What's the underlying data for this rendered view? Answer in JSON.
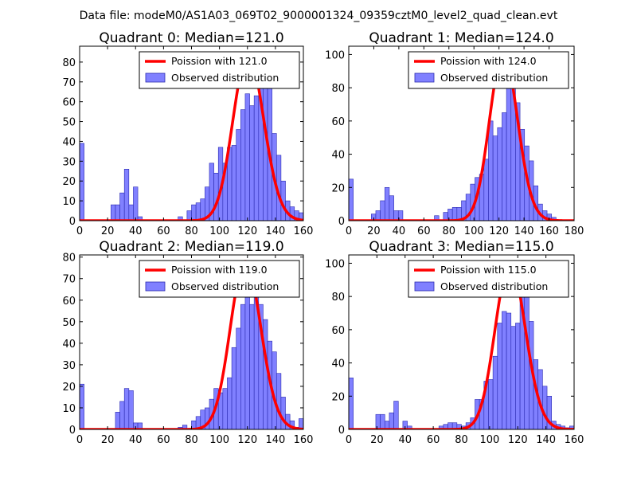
{
  "figure_title": "Data file: modeM0/AS1A03_069T02_9000001324_09359cztM0_level2_quad_clean.evt",
  "colors": {
    "bar_fill": "#8080ff",
    "bar_edge": "#2a2ab0",
    "poisson_line": "#ff0000",
    "axes": "#000000"
  },
  "chart_data": [
    {
      "type": "bar",
      "title": "Quadrant 0: Median=121.0",
      "median": 121.0,
      "xlim": [
        0,
        160
      ],
      "ylim": [
        0,
        88
      ],
      "xticks": [
        0,
        20,
        40,
        60,
        80,
        100,
        120,
        140,
        160
      ],
      "yticks": [
        0,
        10,
        20,
        30,
        40,
        50,
        60,
        70,
        80
      ],
      "bin_width": 3.2,
      "bin_starts": [
        0,
        22.4,
        25.6,
        28.8,
        32,
        35.2,
        38.4,
        41.6,
        70.4,
        76.8,
        80,
        83.2,
        86.4,
        89.6,
        92.8,
        96,
        99.2,
        102.4,
        105.6,
        108.8,
        112,
        115.2,
        118.4,
        121.6,
        124.8,
        128,
        131.2,
        134.4,
        137.6,
        140.8,
        144,
        147.2,
        150.4,
        153.6,
        156.8
      ],
      "values": [
        39,
        8,
        8,
        14,
        26,
        8,
        17,
        2,
        2,
        5,
        8,
        9,
        11,
        17,
        29,
        24,
        37,
        29,
        37,
        38,
        46,
        56,
        64,
        58,
        63,
        80,
        78,
        70,
        44,
        33,
        20,
        10,
        7,
        5,
        4
      ],
      "poisson_mean": 121.0,
      "poisson_peak": 84,
      "legend": {
        "line_label": "Poission with 121.0",
        "bar_label": "Observed distribution"
      }
    },
    {
      "type": "bar",
      "title": "Quadrant 1: Median=124.0",
      "median": 124.0,
      "xlim": [
        0,
        180
      ],
      "ylim": [
        0,
        105
      ],
      "xticks": [
        0,
        20,
        40,
        60,
        80,
        100,
        120,
        140,
        160,
        180
      ],
      "yticks": [
        0,
        20,
        40,
        60,
        80,
        100
      ],
      "bin_width": 3.6,
      "bin_starts": [
        0,
        18,
        21.6,
        25.2,
        28.8,
        32.4,
        36,
        39.6,
        68.4,
        75.6,
        79.2,
        82.8,
        86.4,
        90,
        93.6,
        97.2,
        100.8,
        104.4,
        108,
        111.6,
        115.2,
        118.8,
        122.4,
        126,
        129.6,
        133.2,
        136.8,
        140.4,
        144,
        147.6,
        151.2,
        154.8,
        158.4,
        162
      ],
      "values": [
        25,
        4,
        6,
        12,
        20,
        15,
        6,
        6,
        3,
        5,
        7,
        8,
        8,
        12,
        16,
        22,
        26,
        28,
        37,
        60,
        51,
        56,
        65,
        100,
        83,
        71,
        55,
        45,
        36,
        21,
        10,
        6,
        4,
        2
      ],
      "poisson_mean": 124.0,
      "poisson_peak": 101,
      "legend": {
        "line_label": "Poission with 124.0",
        "bar_label": "Observed distribution"
      }
    },
    {
      "type": "bar",
      "title": "Quadrant 2: Median=119.0",
      "median": 119.0,
      "xlim": [
        0,
        160
      ],
      "ylim": [
        0,
        81
      ],
      "xticks": [
        0,
        20,
        40,
        60,
        80,
        100,
        120,
        140,
        160
      ],
      "yticks": [
        0,
        10,
        20,
        30,
        40,
        50,
        60,
        70,
        80
      ],
      "bin_width": 3.2,
      "bin_starts": [
        0,
        25.6,
        28.8,
        32,
        35.2,
        38.4,
        41.6,
        70.4,
        73.6,
        80,
        83.2,
        86.4,
        89.6,
        92.8,
        96,
        99.2,
        102.4,
        105.6,
        108.8,
        112,
        115.2,
        118.4,
        121.6,
        124.8,
        128,
        131.2,
        134.4,
        137.6,
        140.8,
        144,
        147.2,
        150.4,
        153.6,
        156.8
      ],
      "values": [
        21,
        8,
        13,
        19,
        18,
        3,
        3,
        1,
        2,
        4,
        6,
        9,
        10,
        14,
        19,
        17,
        19,
        24,
        38,
        47,
        58,
        62,
        58,
        69,
        58,
        51,
        41,
        36,
        26,
        15,
        7,
        4,
        1,
        5
      ],
      "poisson_mean": 119.0,
      "poisson_peak": 78,
      "legend": {
        "line_label": "Poission with 119.0",
        "bar_label": "Observed distribution"
      }
    },
    {
      "type": "bar",
      "title": "Quadrant 3: Median=115.0",
      "median": 115.0,
      "xlim": [
        0,
        160
      ],
      "ylim": [
        0,
        105
      ],
      "xticks": [
        0,
        20,
        40,
        60,
        80,
        100,
        120,
        140,
        160
      ],
      "yticks": [
        0,
        20,
        40,
        60,
        80,
        100
      ],
      "bin_width": 3.2,
      "bin_starts": [
        0,
        19.2,
        22.4,
        25.6,
        28.8,
        32,
        38.4,
        41.6,
        64,
        67.2,
        70.4,
        73.6,
        76.8,
        80,
        83.2,
        86.4,
        89.6,
        92.8,
        96,
        99.2,
        102.4,
        105.6,
        108.8,
        112,
        115.2,
        118.4,
        121.6,
        124.8,
        128,
        131.2,
        134.4,
        137.6,
        140.8,
        144,
        147.2,
        150.4,
        153.6,
        156.8
      ],
      "values": [
        31,
        9,
        9,
        5,
        10,
        17,
        5,
        2,
        2,
        3,
        4,
        4,
        3,
        2,
        4,
        7,
        18,
        18,
        29,
        30,
        44,
        64,
        71,
        70,
        62,
        64,
        93,
        80,
        65,
        42,
        36,
        26,
        20,
        5,
        3,
        2,
        1,
        2
      ],
      "poisson_mean": 115.0,
      "poisson_peak": 100,
      "legend": {
        "line_label": "Poission with 115.0",
        "bar_label": "Observed distribution"
      }
    }
  ]
}
